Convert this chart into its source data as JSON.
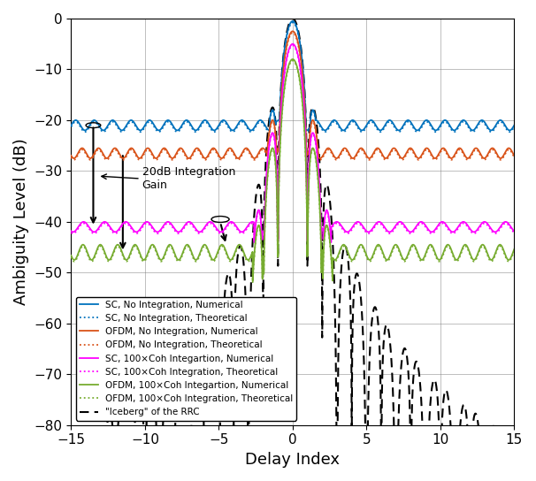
{
  "title": "",
  "xlabel": "Delay Index",
  "ylabel": "Ambiguity Level (dB)",
  "xlim": [
    -15,
    15
  ],
  "ylim": [
    -80,
    0
  ],
  "yticks": [
    0,
    -10,
    -20,
    -30,
    -40,
    -50,
    -60,
    -70,
    -80
  ],
  "xticks": [
    -15,
    -10,
    -5,
    0,
    5,
    10,
    15
  ],
  "colors": {
    "sc_no_int": "#0072BD",
    "ofdm_no_int": "#D95319",
    "sc_100coh": "#FF00FF",
    "ofdm_100coh": "#77AC30",
    "iceberg": "#000000"
  },
  "sc_no_int_level": -21.0,
  "ofdm_no_int_level": -26.5,
  "sc_100coh_level": -41.0,
  "ofdm_100coh_level": -46.0,
  "ripple_amp_sc_no": 1.0,
  "ripple_amp_ofdm_no": 1.0,
  "ripple_amp_sc_100": 1.0,
  "ripple_amp_ofdm_100": 1.5,
  "annotation_text": "20dB Integration\nGain",
  "figsize": [
    6.06,
    5.44
  ],
  "dpi": 100
}
